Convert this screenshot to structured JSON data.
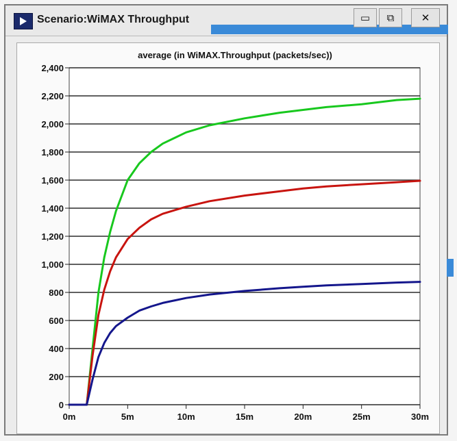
{
  "window": {
    "title": "Scenario:WiMAX Throughput",
    "buttons": {
      "minimize": "▭",
      "maximize": "⧉",
      "close": "✕"
    }
  },
  "colors": {
    "series_green": "#18c81e",
    "series_red": "#c8140f",
    "series_blue": "#14168c",
    "accent": "#3a8ad8"
  },
  "chart_data": {
    "type": "line",
    "title": "average (in WiMAX.Throughput (packets/sec))",
    "xlabel": "",
    "ylabel": "",
    "xlim": [
      0,
      30
    ],
    "ylim": [
      0,
      2400
    ],
    "x_unit": "minutes",
    "x_ticks": [
      0,
      5,
      10,
      15,
      20,
      25,
      30
    ],
    "x_tick_labels": [
      "0m",
      "5m",
      "10m",
      "15m",
      "20m",
      "25m",
      "30m"
    ],
    "y_ticks": [
      0,
      200,
      400,
      600,
      800,
      1000,
      1200,
      1400,
      1600,
      1800,
      2000,
      2200,
      2400
    ],
    "y_tick_labels": [
      "0",
      "200",
      "400",
      "600",
      "800",
      "1,000",
      "1,200",
      "1,400",
      "1,600",
      "1,800",
      "2,000",
      "2,200",
      "2,400"
    ],
    "grid": "horizontal",
    "legend": "none",
    "series": [
      {
        "color": "#18c81e",
        "x": [
          0,
          1.5,
          2,
          2.5,
          3,
          3.5,
          4,
          5,
          6,
          7,
          8,
          10,
          12,
          15,
          18,
          20,
          22,
          25,
          28,
          30
        ],
        "y": [
          0,
          0,
          400,
          800,
          1050,
          1230,
          1380,
          1600,
          1720,
          1800,
          1860,
          1940,
          1990,
          2040,
          2080,
          2100,
          2120,
          2140,
          2170,
          2180
        ]
      },
      {
        "color": "#c8140f",
        "x": [
          0,
          1.5,
          2,
          2.5,
          3,
          3.5,
          4,
          5,
          6,
          7,
          8,
          10,
          12,
          15,
          18,
          20,
          22,
          25,
          28,
          30
        ],
        "y": [
          0,
          0,
          350,
          640,
          820,
          950,
          1050,
          1180,
          1260,
          1320,
          1360,
          1410,
          1450,
          1490,
          1520,
          1540,
          1555,
          1570,
          1585,
          1595
        ]
      },
      {
        "color": "#14168c",
        "x": [
          0,
          1.5,
          2,
          2.5,
          3,
          3.5,
          4,
          5,
          6,
          7,
          8,
          10,
          12,
          15,
          18,
          20,
          22,
          25,
          28,
          30
        ],
        "y": [
          0,
          0,
          180,
          340,
          440,
          510,
          560,
          620,
          670,
          700,
          725,
          760,
          785,
          810,
          830,
          840,
          850,
          860,
          870,
          875
        ]
      }
    ]
  }
}
